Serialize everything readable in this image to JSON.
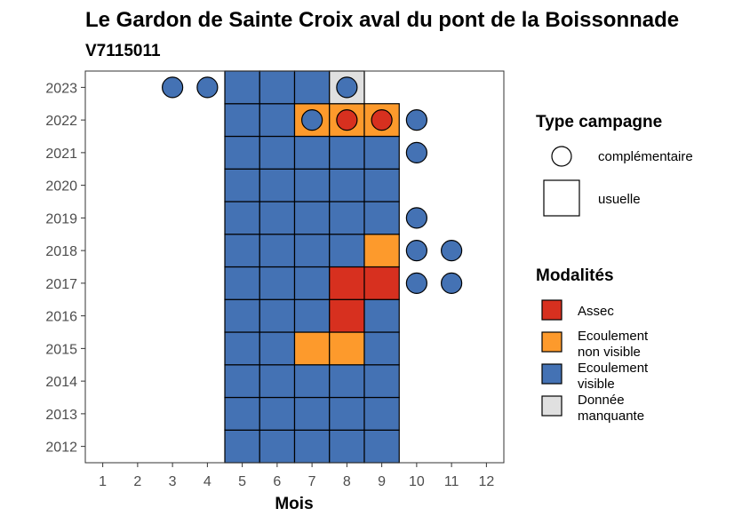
{
  "chart_data": {
    "type": "heatmap",
    "title": "Le Gardon de Sainte Croix aval du pont de la Boissonnade",
    "subtitle": "V7115011",
    "xlabel": "Mois",
    "ylabel": "",
    "x_ticks": [
      "1",
      "2",
      "3",
      "4",
      "5",
      "6",
      "7",
      "8",
      "9",
      "10",
      "11",
      "12"
    ],
    "y_ticks": [
      "2012",
      "2013",
      "2014",
      "2015",
      "2016",
      "2017",
      "2018",
      "2019",
      "2020",
      "2021",
      "2022",
      "2023"
    ],
    "xlim": [
      0.5,
      12.5
    ],
    "ylim": [
      2011.5,
      2023.5
    ],
    "legend_placement": "right",
    "colors": {
      "Assec": "#d7301f",
      "Ecoulement non visible": "#fd9a2c",
      "Ecoulement visible": "#4472b4",
      "Donnée manquante": "#e0e0e0"
    },
    "usuelle": [
      {
        "year": 2012,
        "month": 5,
        "modalite": "Ecoulement visible"
      },
      {
        "year": 2012,
        "month": 6,
        "modalite": "Ecoulement visible"
      },
      {
        "year": 2012,
        "month": 7,
        "modalite": "Ecoulement visible"
      },
      {
        "year": 2012,
        "month": 8,
        "modalite": "Ecoulement visible"
      },
      {
        "year": 2012,
        "month": 9,
        "modalite": "Ecoulement visible"
      },
      {
        "year": 2013,
        "month": 5,
        "modalite": "Ecoulement visible"
      },
      {
        "year": 2013,
        "month": 6,
        "modalite": "Ecoulement visible"
      },
      {
        "year": 2013,
        "month": 7,
        "modalite": "Ecoulement visible"
      },
      {
        "year": 2013,
        "month": 8,
        "modalite": "Ecoulement visible"
      },
      {
        "year": 2013,
        "month": 9,
        "modalite": "Ecoulement visible"
      },
      {
        "year": 2014,
        "month": 5,
        "modalite": "Ecoulement visible"
      },
      {
        "year": 2014,
        "month": 6,
        "modalite": "Ecoulement visible"
      },
      {
        "year": 2014,
        "month": 7,
        "modalite": "Ecoulement visible"
      },
      {
        "year": 2014,
        "month": 8,
        "modalite": "Ecoulement visible"
      },
      {
        "year": 2014,
        "month": 9,
        "modalite": "Ecoulement visible"
      },
      {
        "year": 2015,
        "month": 5,
        "modalite": "Ecoulement visible"
      },
      {
        "year": 2015,
        "month": 6,
        "modalite": "Ecoulement visible"
      },
      {
        "year": 2015,
        "month": 7,
        "modalite": "Ecoulement non visible"
      },
      {
        "year": 2015,
        "month": 8,
        "modalite": "Ecoulement non visible"
      },
      {
        "year": 2015,
        "month": 9,
        "modalite": "Ecoulement visible"
      },
      {
        "year": 2016,
        "month": 5,
        "modalite": "Ecoulement visible"
      },
      {
        "year": 2016,
        "month": 6,
        "modalite": "Ecoulement visible"
      },
      {
        "year": 2016,
        "month": 7,
        "modalite": "Ecoulement visible"
      },
      {
        "year": 2016,
        "month": 8,
        "modalite": "Assec"
      },
      {
        "year": 2016,
        "month": 9,
        "modalite": "Ecoulement visible"
      },
      {
        "year": 2017,
        "month": 5,
        "modalite": "Ecoulement visible"
      },
      {
        "year": 2017,
        "month": 6,
        "modalite": "Ecoulement visible"
      },
      {
        "year": 2017,
        "month": 7,
        "modalite": "Ecoulement visible"
      },
      {
        "year": 2017,
        "month": 8,
        "modalite": "Assec"
      },
      {
        "year": 2017,
        "month": 9,
        "modalite": "Assec"
      },
      {
        "year": 2018,
        "month": 5,
        "modalite": "Ecoulement visible"
      },
      {
        "year": 2018,
        "month": 6,
        "modalite": "Ecoulement visible"
      },
      {
        "year": 2018,
        "month": 7,
        "modalite": "Ecoulement visible"
      },
      {
        "year": 2018,
        "month": 8,
        "modalite": "Ecoulement visible"
      },
      {
        "year": 2018,
        "month": 9,
        "modalite": "Ecoulement non visible"
      },
      {
        "year": 2019,
        "month": 5,
        "modalite": "Ecoulement visible"
      },
      {
        "year": 2019,
        "month": 6,
        "modalite": "Ecoulement visible"
      },
      {
        "year": 2019,
        "month": 7,
        "modalite": "Ecoulement visible"
      },
      {
        "year": 2019,
        "month": 8,
        "modalite": "Ecoulement visible"
      },
      {
        "year": 2019,
        "month": 9,
        "modalite": "Ecoulement visible"
      },
      {
        "year": 2020,
        "month": 5,
        "modalite": "Ecoulement visible"
      },
      {
        "year": 2020,
        "month": 6,
        "modalite": "Ecoulement visible"
      },
      {
        "year": 2020,
        "month": 7,
        "modalite": "Ecoulement visible"
      },
      {
        "year": 2020,
        "month": 8,
        "modalite": "Ecoulement visible"
      },
      {
        "year": 2020,
        "month": 9,
        "modalite": "Ecoulement visible"
      },
      {
        "year": 2021,
        "month": 5,
        "modalite": "Ecoulement visible"
      },
      {
        "year": 2021,
        "month": 6,
        "modalite": "Ecoulement visible"
      },
      {
        "year": 2021,
        "month": 7,
        "modalite": "Ecoulement visible"
      },
      {
        "year": 2021,
        "month": 8,
        "modalite": "Ecoulement visible"
      },
      {
        "year": 2021,
        "month": 9,
        "modalite": "Ecoulement visible"
      },
      {
        "year": 2022,
        "month": 5,
        "modalite": "Ecoulement visible"
      },
      {
        "year": 2022,
        "month": 6,
        "modalite": "Ecoulement visible"
      },
      {
        "year": 2022,
        "month": 7,
        "modalite": "Ecoulement non visible"
      },
      {
        "year": 2022,
        "month": 8,
        "modalite": "Ecoulement non visible"
      },
      {
        "year": 2022,
        "month": 9,
        "modalite": "Ecoulement non visible"
      },
      {
        "year": 2023,
        "month": 5,
        "modalite": "Ecoulement visible"
      },
      {
        "year": 2023,
        "month": 6,
        "modalite": "Ecoulement visible"
      },
      {
        "year": 2023,
        "month": 7,
        "modalite": "Ecoulement visible"
      },
      {
        "year": 2023,
        "month": 8,
        "modalite": "Donnée manquante"
      }
    ],
    "complementaire": [
      {
        "year": 2023,
        "month": 3,
        "modalite": "Ecoulement visible"
      },
      {
        "year": 2023,
        "month": 4,
        "modalite": "Ecoulement visible"
      },
      {
        "year": 2023,
        "month": 8,
        "modalite": "Ecoulement visible"
      },
      {
        "year": 2022,
        "month": 7,
        "modalite": "Ecoulement visible"
      },
      {
        "year": 2022,
        "month": 8,
        "modalite": "Assec"
      },
      {
        "year": 2022,
        "month": 9,
        "modalite": "Assec"
      },
      {
        "year": 2022,
        "month": 10,
        "modalite": "Ecoulement visible"
      },
      {
        "year": 2021,
        "month": 10,
        "modalite": "Ecoulement visible"
      },
      {
        "year": 2019,
        "month": 10,
        "modalite": "Ecoulement visible"
      },
      {
        "year": 2018,
        "month": 10,
        "modalite": "Ecoulement visible"
      },
      {
        "year": 2018,
        "month": 11,
        "modalite": "Ecoulement visible"
      },
      {
        "year": 2017,
        "month": 10,
        "modalite": "Ecoulement visible"
      },
      {
        "year": 2017,
        "month": 11,
        "modalite": "Ecoulement visible"
      }
    ],
    "legend": {
      "type_title": "Type campagne",
      "type_items": [
        "complémentaire",
        "usuelle"
      ],
      "mod_title": "Modalités",
      "mod_items": [
        {
          "key": "Assec",
          "lines": [
            "Assec"
          ]
        },
        {
          "key": "Ecoulement non visible",
          "lines": [
            "Ecoulement",
            "non visible"
          ]
        },
        {
          "key": "Ecoulement visible",
          "lines": [
            "Ecoulement",
            "visible"
          ]
        },
        {
          "key": "Donnée manquante",
          "lines": [
            "Donnée",
            "manquante"
          ]
        }
      ]
    }
  }
}
